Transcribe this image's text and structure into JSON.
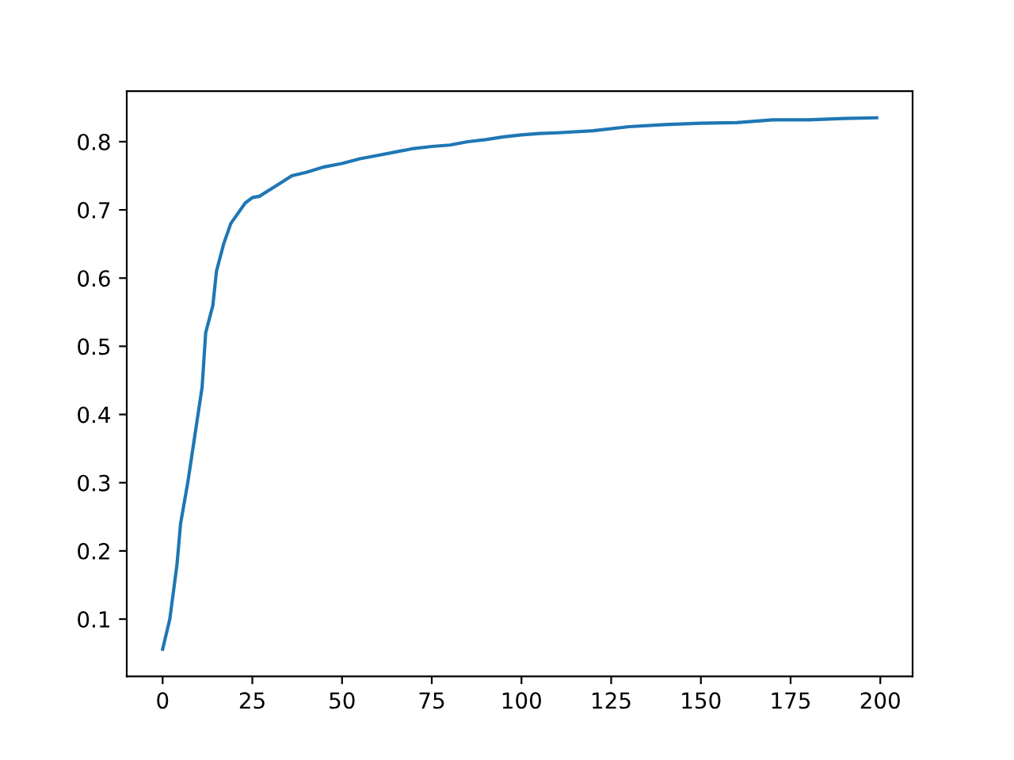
{
  "chart_data": {
    "type": "line",
    "x": [
      0,
      2,
      4,
      5,
      7,
      9,
      11,
      12,
      14,
      15,
      17,
      19,
      21,
      23,
      25,
      27,
      30,
      33,
      36,
      40,
      45,
      50,
      55,
      60,
      65,
      70,
      75,
      80,
      85,
      90,
      95,
      100,
      105,
      110,
      120,
      130,
      140,
      150,
      160,
      170,
      180,
      190,
      199
    ],
    "series": [
      {
        "color": "#1f77b4",
        "values": [
          0.056,
          0.1,
          0.18,
          0.24,
          0.3,
          0.37,
          0.44,
          0.52,
          0.56,
          0.61,
          0.65,
          0.68,
          0.695,
          0.71,
          0.718,
          0.72,
          0.73,
          0.74,
          0.75,
          0.755,
          0.763,
          0.768,
          0.775,
          0.78,
          0.785,
          0.79,
          0.793,
          0.795,
          0.8,
          0.803,
          0.807,
          0.81,
          0.812,
          0.813,
          0.816,
          0.822,
          0.825,
          0.827,
          0.828,
          0.832,
          0.832,
          0.834,
          0.835
        ]
      }
    ],
    "xlim": [
      -10,
      209
    ],
    "xticks": [
      0,
      25,
      50,
      75,
      100,
      125,
      150,
      175,
      200
    ],
    "ylim": [
      0.016,
      0.874
    ],
    "yticks": [
      0.1,
      0.2,
      0.3,
      0.4,
      0.5,
      0.6,
      0.7,
      0.8
    ],
    "grid": false,
    "marker": "none",
    "line_style": "solid"
  }
}
